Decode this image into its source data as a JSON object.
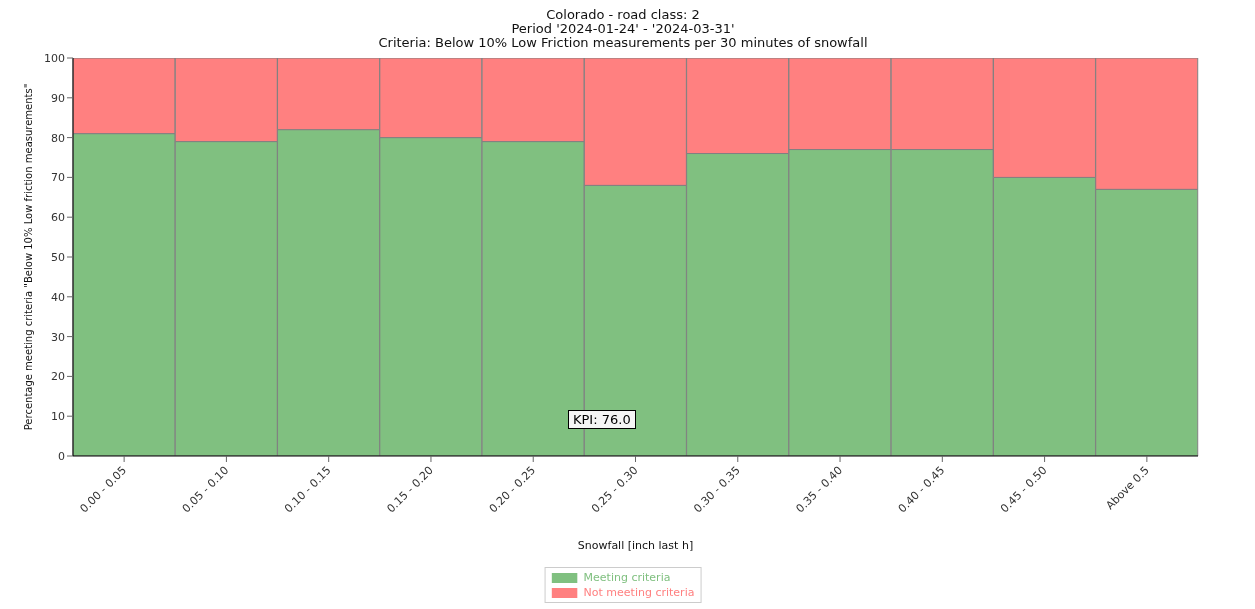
{
  "chart_data": {
    "type": "bar",
    "stacked": true,
    "title": "Colorado - road class: 2",
    "subtitle": "Period '2024-01-24' - '2024-03-31'\nCriteria: Below 10% Low Friction measurements per 30 minutes of snowfall",
    "xlabel": "Snowfall [inch last h]",
    "ylabel": "Percentage meeting criteria \"Below 10% Low friction measurements\"",
    "categories": [
      "0.00 - 0.05",
      "0.05 - 0.10",
      "0.10 - 0.15",
      "0.15 - 0.20",
      "0.20 - 0.25",
      "0.25 - 0.30",
      "0.30 - 0.35",
      "0.35 - 0.40",
      "0.40 - 0.45",
      "0.45 - 0.50",
      "Above 0.5"
    ],
    "series": [
      {
        "name": "Meeting criteria",
        "color": "#80c080",
        "values": [
          81,
          79,
          82,
          80,
          79,
          68,
          76,
          77,
          77,
          70,
          67
        ]
      },
      {
        "name": "Not meeting criteria",
        "color": "#ff8080",
        "values": [
          19,
          21,
          18,
          20,
          21,
          32,
          24,
          23,
          23,
          30,
          33
        ]
      }
    ],
    "ylim": [
      0,
      100
    ],
    "yticks": [
      0,
      10,
      20,
      30,
      40,
      50,
      60,
      70,
      80,
      90,
      100
    ],
    "grid": false,
    "legend": "bottom",
    "annotations": [
      "KPI: 76.0"
    ]
  }
}
